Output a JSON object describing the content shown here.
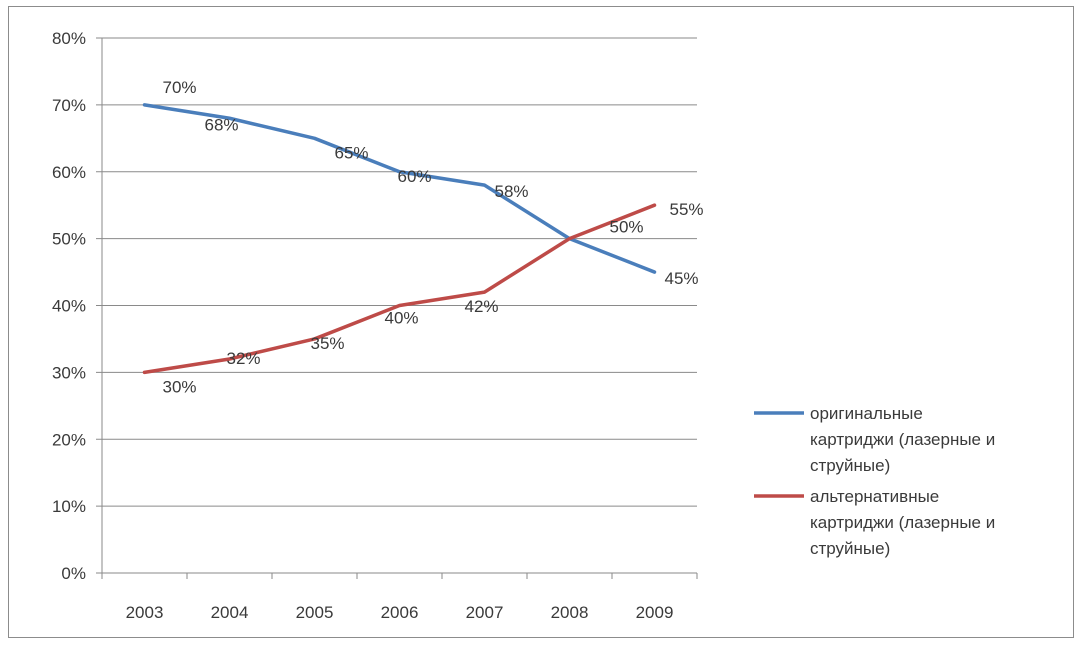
{
  "chart_data": {
    "type": "line",
    "title": "",
    "xlabel": "",
    "ylabel": "",
    "x": [
      "2003",
      "2004",
      "2005",
      "2006",
      "2007",
      "2008",
      "2009"
    ],
    "ylim": [
      0,
      80
    ],
    "y_ticks": [
      "0%",
      "10%",
      "20%",
      "30%",
      "40%",
      "50%",
      "60%",
      "70%",
      "80%"
    ],
    "grid": true,
    "legend_position": "right",
    "series": [
      {
        "name": "оригинальные картриджи (лазерные и струйные)",
        "legend_lines": [
          "оригинальные",
          "картриджи (лазерные и",
          "струйные)"
        ],
        "color": "#4a7ebb",
        "values": [
          70,
          68,
          65,
          60,
          58,
          50,
          45
        ],
        "labels": [
          "70%",
          "68%",
          "65%",
          "60%",
          "58%",
          "50%",
          "45%"
        ]
      },
      {
        "name": "альтернативные картриджи (лазерные и струйные)",
        "legend_lines": [
          "альтернативные",
          "картриджи (лазерные и",
          "струйные)"
        ],
        "color": "#be4b48",
        "values": [
          30,
          32,
          35,
          40,
          42,
          50,
          55
        ],
        "labels": [
          "30%",
          "32%",
          "35%",
          "40%",
          "42%",
          "",
          "55%"
        ]
      }
    ]
  }
}
